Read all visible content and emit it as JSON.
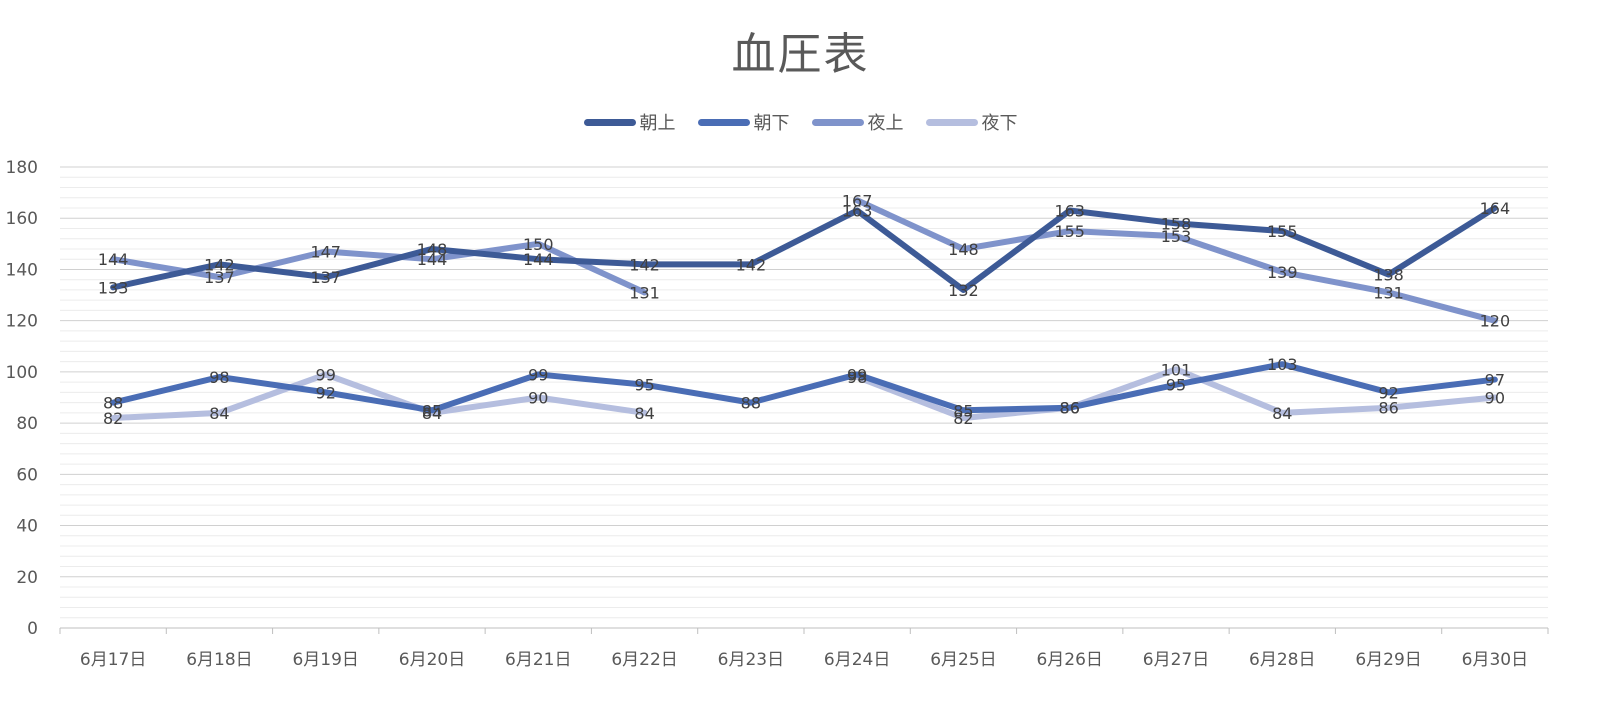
{
  "chart_data": {
    "type": "line",
    "title": "血圧表",
    "xlabel": "",
    "ylabel": "",
    "ylim": [
      0,
      180
    ],
    "ystep": 20,
    "grid": true,
    "legend_position": "top",
    "categories": [
      "6月17日",
      "6月18日",
      "6月19日",
      "6月20日",
      "6月21日",
      "6月22日",
      "6月23日",
      "6月24日",
      "6月25日",
      "6月26日",
      "6月27日",
      "6月28日",
      "6月29日",
      "6月30日"
    ],
    "series": [
      {
        "name": "朝上",
        "color": "#3d5a96",
        "values": [
          133,
          142,
          137,
          148,
          144,
          142,
          142,
          163,
          132,
          163,
          158,
          155,
          138,
          164
        ]
      },
      {
        "name": "朝下",
        "color": "#4a6db5",
        "values": [
          88,
          98,
          92,
          85,
          99,
          95,
          88,
          99,
          85,
          86,
          95,
          103,
          92,
          97
        ]
      },
      {
        "name": "夜上",
        "color": "#7f93cb",
        "values": [
          144,
          137,
          147,
          144,
          150,
          131,
          null,
          167,
          148,
          155,
          153,
          139,
          131,
          120
        ]
      },
      {
        "name": "夜下",
        "color": "#b5bedf",
        "values": [
          82,
          84,
          99,
          84,
          90,
          84,
          null,
          98,
          82,
          86,
          101,
          84,
          86,
          90
        ]
      }
    ]
  }
}
